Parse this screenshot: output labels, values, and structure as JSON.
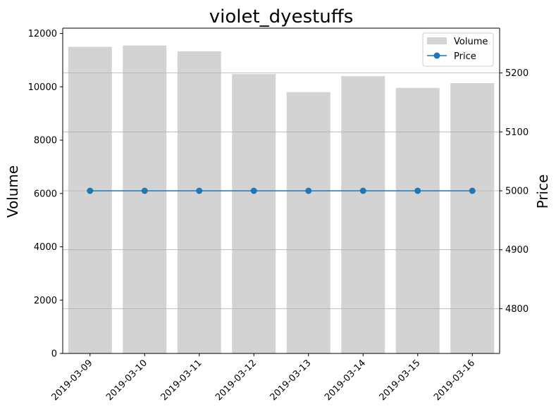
{
  "chart_data": {
    "type": "bar",
    "title": "violet_dyestuffs",
    "categories": [
      "2019-03-09",
      "2019-03-10",
      "2019-03-11",
      "2019-03-12",
      "2019-03-13",
      "2019-03-14",
      "2019-03-15",
      "2019-03-16"
    ],
    "ylabel": "Volume",
    "y2label": "Price",
    "ylim": [
      0,
      12200
    ],
    "y2lim": [
      4724,
      5276
    ],
    "yticks": [
      0,
      2000,
      4000,
      6000,
      8000,
      10000,
      12000
    ],
    "y2ticks": [
      4800,
      4900,
      5000,
      5100,
      5200
    ],
    "grid": "right-axis horizontal",
    "legend_position": "top-right",
    "series": [
      {
        "name": "Volume",
        "type": "bar",
        "axis": "left",
        "color": "#d3d3d3",
        "values": [
          11500,
          11550,
          11330,
          10480,
          9800,
          10400,
          9960,
          10140
        ]
      },
      {
        "name": "Price",
        "type": "line",
        "axis": "right",
        "color": "#1f77b4",
        "marker": "circle",
        "values": [
          5000,
          5000,
          5000,
          5000,
          5000,
          5000,
          5000,
          5000
        ]
      }
    ]
  }
}
